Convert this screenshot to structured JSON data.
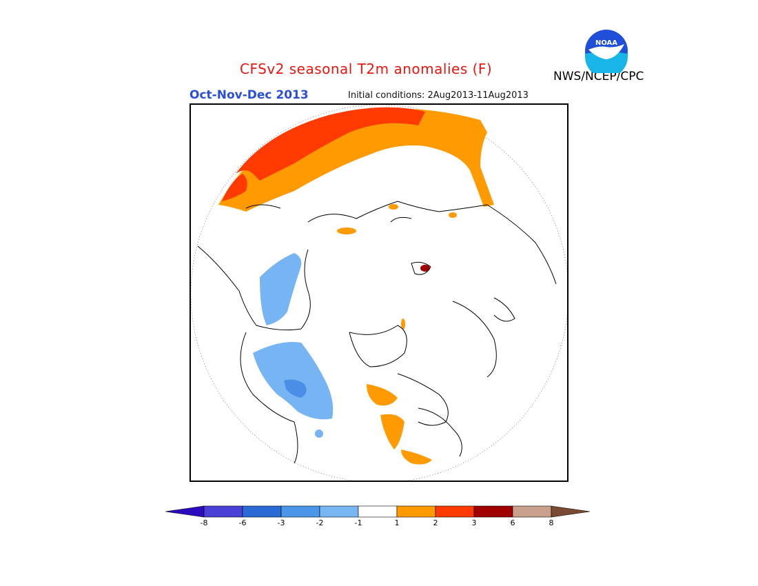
{
  "title": "CFSv2 seasonal T2m anomalies (F)",
  "season": "Oct-Nov-Dec 2013",
  "initial_conditions": "Initial conditions: 2Aug2013-11Aug2013",
  "agency": "NWS/NCEP/CPC",
  "logo": {
    "text": "NOAA",
    "colors": {
      "top": "#1f4fd8",
      "bottom": "#18b6e8",
      "bird": "#ffffff"
    }
  },
  "map": {
    "projection": "north polar stereographic",
    "grid_lines": "dotted",
    "regions": [
      {
        "name": "warm-band-north-asia",
        "level": "1 to 3 F",
        "color": "#ff9a00"
      },
      {
        "name": "hot-core-north-asia",
        "level": "2 to 3 F",
        "color": "#ff3a00"
      },
      {
        "name": "cool-north-america",
        "level": "-1 to -3 F",
        "color": "#77b4f4"
      },
      {
        "name": "cool-core-north-america",
        "level": "-2 to -3 F",
        "color": "#4a8ee8"
      },
      {
        "name": "cool-strip-alaska",
        "level": "-1 to -2 F",
        "color": "#77b4f4"
      },
      {
        "name": "warm-patches-europe",
        "level": "1 to 2 F",
        "color": "#ff9a00"
      }
    ]
  },
  "colorbar": {
    "colors": [
      "#2c0abd",
      "#4a3fd6",
      "#2a6ad4",
      "#4a97ea",
      "#78b6f3",
      "#ffffff",
      "#ff9a00",
      "#ff3a00",
      "#a00000",
      "#c8a08c",
      "#7a4a32"
    ],
    "ticks": [
      "-8",
      "-6",
      "-3",
      "-2",
      "-1",
      "1",
      "2",
      "3",
      "6",
      "8"
    ]
  }
}
